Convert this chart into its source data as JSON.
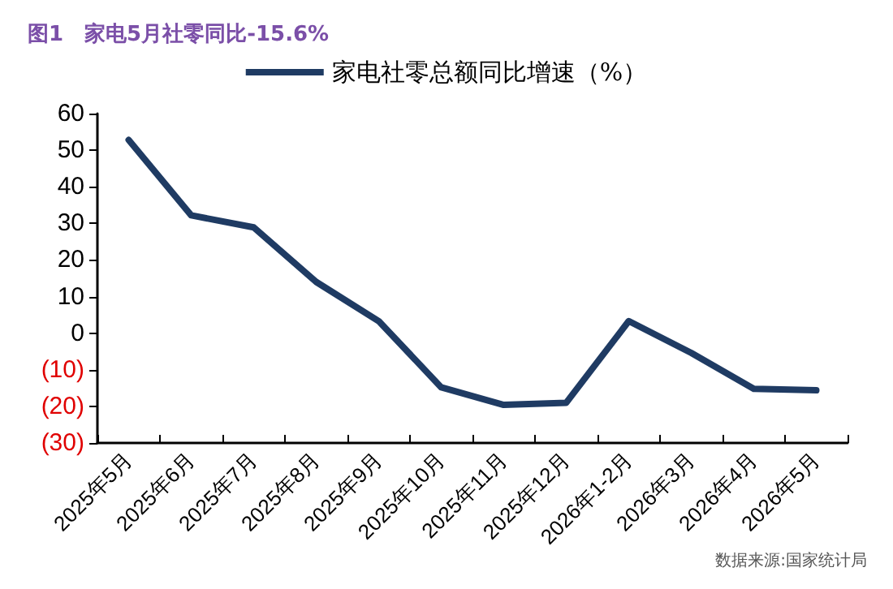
{
  "chart_data": {
    "type": "line",
    "title": "图1　家电5月社零同比-15.6%",
    "categories": [
      "2025年5月",
      "2025年6月",
      "2025年7月",
      "2025年8月",
      "2025年9月",
      "2025年10月",
      "2025年11月",
      "2025年12月",
      "2026年1-2月",
      "2026年3月",
      "2026年4月",
      "2026年5月"
    ],
    "series": [
      {
        "name": "家电社零总额同比增速（%）",
        "color": "#1f3b63",
        "values": [
          52.8,
          32.2,
          28.9,
          14,
          3.3,
          -14.8,
          -19.6,
          -19,
          3.3,
          -5.4,
          -15.2,
          -15.6
        ]
      }
    ],
    "ylim": [
      -30,
      60
    ],
    "yticks": [
      {
        "value": -30,
        "label": "(30)"
      },
      {
        "value": -20,
        "label": "(20)"
      },
      {
        "value": -10,
        "label": "(10)"
      },
      0,
      10,
      20,
      30,
      40,
      50,
      60
    ],
    "grid": false,
    "legend": "top",
    "marker": "none",
    "line_style": "solid",
    "annotations": [
      "数据来源:国家统计局"
    ]
  }
}
